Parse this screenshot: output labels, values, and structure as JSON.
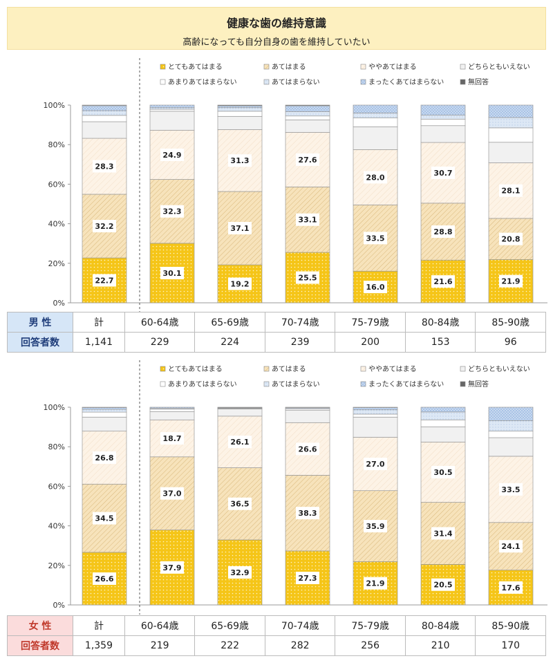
{
  "title": "健康な歯の維持意識",
  "subtitle": "高齢になっても自分自身の歯を維持していたい",
  "legend": [
    "とてもあてはまる",
    "あてはまる",
    "ややあてはまる",
    "どちらともいえない",
    "あまりあてはまらない",
    "あてはまらない",
    "まったくあてはまらない",
    "無回答"
  ],
  "colors": [
    "#f5c518",
    "#f7e3bb",
    "#fdf3e6",
    "#f1f1f1",
    "#ffffff",
    "#dde8f5",
    "#a9c3e6",
    "#666666"
  ],
  "yticks": [
    "0%",
    "20%",
    "40%",
    "60%",
    "80%",
    "100%"
  ],
  "male": {
    "label": "男 性",
    "count_label": "回答者数",
    "columns": [
      "計",
      "60-64歳",
      "65-69歳",
      "70-74歳",
      "75-79歳",
      "80-84歳",
      "85-90歳"
    ],
    "counts": [
      "1,141",
      "229",
      "224",
      "239",
      "200",
      "153",
      "96"
    ]
  },
  "female": {
    "label": "女 性",
    "count_label": "回答者数",
    "columns": [
      "計",
      "60-64歳",
      "65-69歳",
      "70-74歳",
      "75-79歳",
      "80-84歳",
      "85-90歳"
    ],
    "counts": [
      "1,359",
      "219",
      "222",
      "282",
      "256",
      "210",
      "170"
    ]
  },
  "chart_data": [
    {
      "type": "bar",
      "stacked": true,
      "categories": [
        "計",
        "60-64歳",
        "65-69歳",
        "70-74歳",
        "75-79歳",
        "80-84歳",
        "85-90歳"
      ],
      "ylim": [
        0,
        100
      ],
      "series": [
        {
          "name": "とてもあてはまる",
          "values": [
            22.7,
            30.1,
            19.2,
            25.5,
            16.0,
            21.6,
            21.9
          ]
        },
        {
          "name": "あてはまる",
          "values": [
            32.2,
            32.3,
            37.1,
            33.1,
            33.5,
            28.8,
            20.8
          ]
        },
        {
          "name": "ややあてはまる",
          "values": [
            28.3,
            24.9,
            31.3,
            27.6,
            28.0,
            30.7,
            28.1
          ]
        },
        {
          "name": "どちらともいえない",
          "values": [
            8.4,
            9.6,
            6.7,
            6.3,
            11.5,
            8.5,
            10.4
          ]
        },
        {
          "name": "あまりあてはまらない",
          "values": [
            3.2,
            1.0,
            2.6,
            2.0,
            4.5,
            3.3,
            7.3
          ]
        },
        {
          "name": "あてはまらない",
          "values": [
            2.4,
            0.8,
            1.8,
            2.2,
            2.5,
            2.0,
            5.2
          ]
        },
        {
          "name": "まったくあてはまらない",
          "values": [
            2.5,
            1.3,
            0.9,
            2.9,
            4.0,
            5.1,
            6.3
          ]
        },
        {
          "name": "無回答",
          "values": [
            0.3,
            0.0,
            0.4,
            0.4,
            0.0,
            0.0,
            0.0
          ]
        }
      ]
    },
    {
      "type": "bar",
      "stacked": true,
      "categories": [
        "計",
        "60-64歳",
        "65-69歳",
        "70-74歳",
        "75-79歳",
        "80-84歳",
        "85-90歳"
      ],
      "ylim": [
        0,
        100
      ],
      "series": [
        {
          "name": "とてもあてはまる",
          "values": [
            26.6,
            37.9,
            32.9,
            27.3,
            21.9,
            20.5,
            17.6
          ]
        },
        {
          "name": "あてはまる",
          "values": [
            34.5,
            37.0,
            36.5,
            38.3,
            35.9,
            31.4,
            24.1
          ]
        },
        {
          "name": "ややあてはまる",
          "values": [
            26.8,
            18.7,
            26.1,
            26.6,
            27.0,
            30.5,
            33.5
          ]
        },
        {
          "name": "どちらともいえない",
          "values": [
            7.1,
            4.2,
            3.6,
            6.2,
            10.2,
            7.7,
            9.4
          ]
        },
        {
          "name": "あまりあてはまらない",
          "values": [
            2.5,
            1.2,
            0.2,
            0.7,
            1.5,
            3.5,
            3.3
          ]
        },
        {
          "name": "あてはまらない",
          "values": [
            1.4,
            0.5,
            0.1,
            0.5,
            2.2,
            4.0,
            5.3
          ]
        },
        {
          "name": "まったくあてはまらない",
          "values": [
            0.9,
            0.5,
            0.3,
            0.2,
            1.1,
            2.4,
            6.8
          ]
        },
        {
          "name": "無回答",
          "values": [
            0.2,
            0.0,
            0.3,
            0.2,
            0.2,
            0.0,
            0.0
          ]
        }
      ]
    }
  ]
}
